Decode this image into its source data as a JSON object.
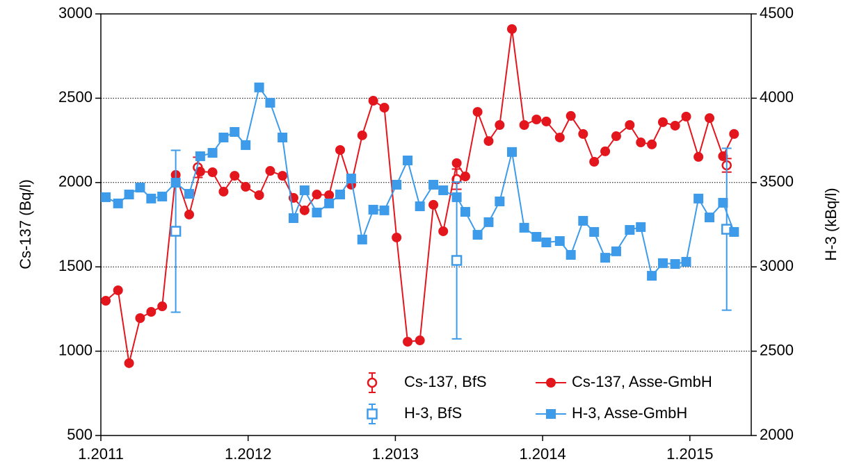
{
  "chart_data": {
    "type": "line",
    "ylabel": "Cs-137 (Bq/l)",
    "y2label": "H-3 (kBq/l)",
    "xlim": [
      0,
      53
    ],
    "xticks": [
      {
        "value": 0,
        "label": "1.2011"
      },
      {
        "value": 12,
        "label": "1.2012"
      },
      {
        "value": 24,
        "label": "1.2013"
      },
      {
        "value": 36,
        "label": "1.2014"
      },
      {
        "value": 48,
        "label": "1.2015"
      }
    ],
    "ylim": [
      500,
      3000
    ],
    "yticks": [
      500,
      1000,
      1500,
      2000,
      2500,
      3000
    ],
    "y2lim": [
      2000,
      4500
    ],
    "y2ticks": [
      2000,
      2500,
      3000,
      3500,
      4000,
      4500
    ],
    "grid": true,
    "legend": "lower right",
    "series": [
      {
        "name": "Cs-137, BfS",
        "color": "#e3161d",
        "marker": "circle",
        "filled": false,
        "line": false,
        "axis": "y",
        "x": [
          7.9,
          29.0,
          51.0
        ],
        "values": [
          2090,
          2020,
          2102
        ],
        "errors": [
          60,
          60,
          40
        ]
      },
      {
        "name": "Cs-137, Asse-GmbH",
        "color": "#e3161d",
        "marker": "circle",
        "filled": true,
        "line": true,
        "axis": "y",
        "x": [
          0.4,
          1.4,
          2.3,
          3.2,
          4.1,
          5.0,
          6.1,
          7.2,
          8.1,
          9.1,
          10.0,
          10.9,
          11.8,
          12.9,
          13.8,
          14.8,
          15.7,
          16.6,
          17.6,
          18.6,
          19.5,
          20.4,
          21.3,
          22.2,
          23.1,
          24.1,
          25.0,
          26.0,
          27.1,
          27.9,
          29.0,
          29.7,
          30.7,
          31.6,
          32.5,
          33.5,
          34.5,
          35.5,
          36.3,
          37.4,
          38.3,
          39.3,
          40.2,
          41.1,
          42.0,
          43.1,
          44.0,
          44.9,
          45.8,
          46.8,
          47.7,
          48.7,
          49.6,
          50.7,
          51.6
        ],
        "values": [
          1299,
          1361,
          929,
          1196,
          1233,
          1266,
          2045,
          1810,
          2065,
          2061,
          1946,
          2040,
          1975,
          1925,
          2069,
          2040,
          1909,
          1835,
          1929,
          1925,
          2193,
          1987,
          2280,
          2485,
          2444,
          1674,
          1056,
          1064,
          1868,
          1711,
          2115,
          2036,
          2419,
          2246,
          2341,
          2910,
          2341,
          2374,
          2362,
          2267,
          2395,
          2288,
          2123,
          2185,
          2275,
          2341,
          2238,
          2226,
          2358,
          2337,
          2391,
          2152,
          2382,
          2156,
          2288
        ]
      },
      {
        "name": "H-3, BfS",
        "color": "#3d9be9",
        "marker": "square",
        "filled": false,
        "line": false,
        "axis": "y2",
        "x": [
          6.1,
          29.0,
          51.0
        ],
        "values": [
          3211,
          3038,
          3223
        ],
        "errors": [
          480,
          465,
          480
        ]
      },
      {
        "name": "H-3, Asse-GmbH",
        "color": "#3d9be9",
        "marker": "square",
        "filled": true,
        "line": true,
        "axis": "y2",
        "x": [
          0.4,
          1.4,
          2.3,
          3.2,
          4.1,
          5.0,
          6.1,
          7.2,
          8.1,
          9.1,
          10.0,
          10.9,
          11.8,
          12.9,
          13.8,
          14.8,
          15.7,
          16.6,
          17.6,
          18.6,
          19.5,
          20.4,
          21.3,
          22.2,
          23.1,
          24.1,
          25.0,
          26.0,
          27.1,
          27.9,
          29.0,
          29.7,
          30.7,
          31.6,
          32.5,
          33.5,
          34.5,
          35.5,
          36.3,
          37.4,
          38.3,
          39.3,
          40.2,
          41.1,
          42.0,
          43.1,
          44.0,
          44.9,
          45.8,
          46.8,
          47.7,
          48.7,
          49.6,
          50.7,
          51.6
        ],
        "values": [
          3413,
          3376,
          3429,
          3470,
          3405,
          3417,
          3499,
          3433,
          3656,
          3676,
          3767,
          3800,
          3722,
          4064,
          3973,
          3767,
          3289,
          3454,
          3322,
          3376,
          3429,
          3524,
          3162,
          3339,
          3335,
          3487,
          3631,
          3359,
          3487,
          3454,
          3413,
          3326,
          3190,
          3265,
          3388,
          3681,
          3232,
          3178,
          3145,
          3153,
          3071,
          3273,
          3207,
          3054,
          3092,
          3219,
          3236,
          2947,
          3022,
          3017,
          3030,
          3405,
          3293,
          3380,
          3207
        ]
      }
    ]
  }
}
